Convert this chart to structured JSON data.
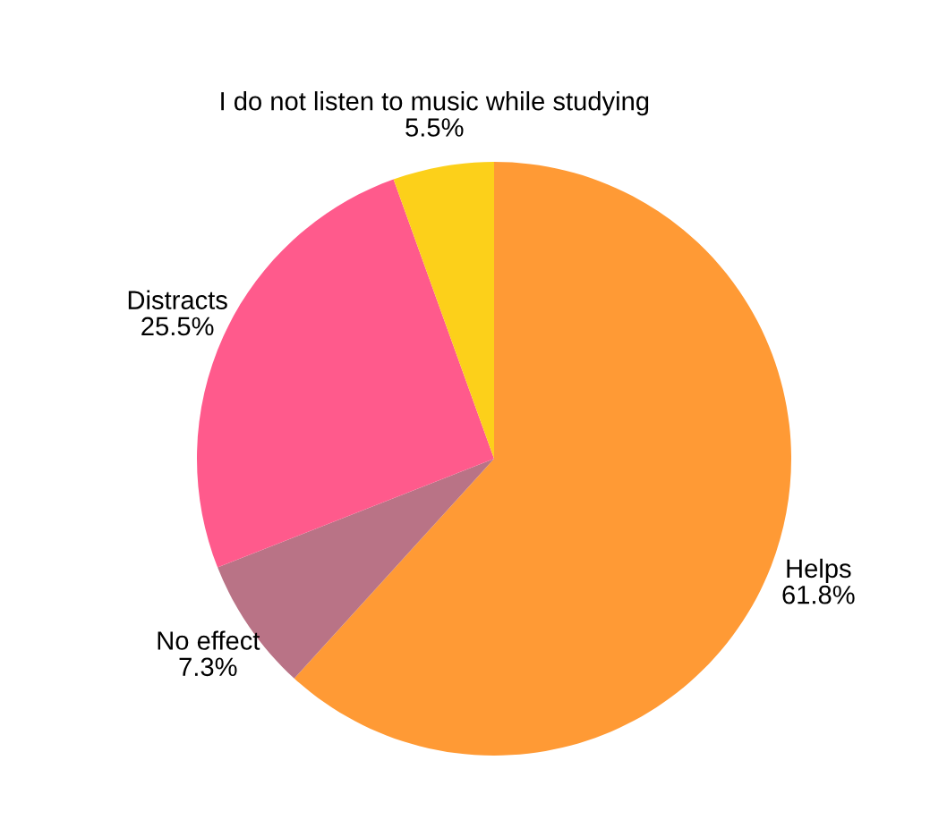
{
  "chart_data": {
    "type": "pie",
    "categories": [
      "Helps",
      "No effect",
      "Distracts",
      "I do not listen to music while studying"
    ],
    "values": [
      61.8,
      7.3,
      25.5,
      5.5
    ],
    "value_labels": [
      "61.8%",
      "7.3%",
      "25.5%",
      "5.5%"
    ],
    "colors": [
      "#ff9a35",
      "#b97386",
      "#ff5a8c",
      "#fcd01a"
    ]
  }
}
